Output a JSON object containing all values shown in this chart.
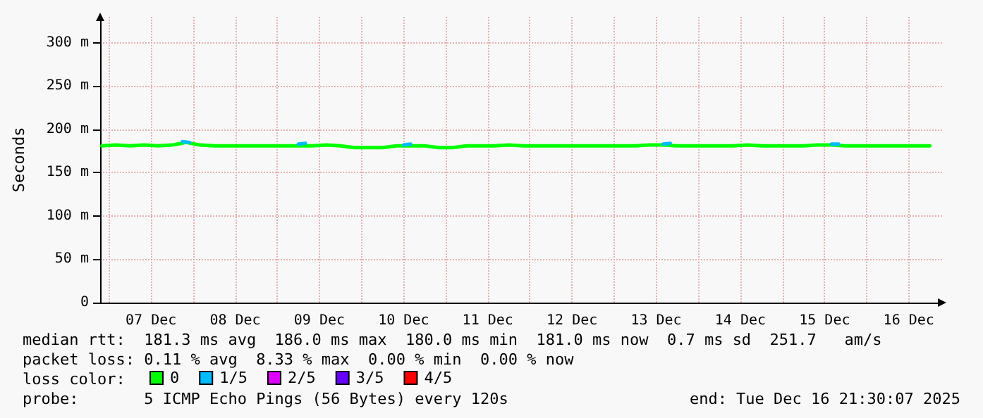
{
  "chart_data": {
    "type": "line",
    "ylabel": "Seconds",
    "legend_title": "loss color:",
    "legend": "bottom",
    "grid": true,
    "marker": "none",
    "line_style": "solid",
    "xlim": [
      "2025-12-06T21:30",
      "2025-12-16T21:30"
    ],
    "xticks": [
      {
        "value": "2025-12-07T00:00",
        "label": null
      },
      {
        "value": "2025-12-07T12:00",
        "label": "07 Dec"
      },
      {
        "value": "2025-12-08T00:00",
        "label": null
      },
      {
        "value": "2025-12-08T12:00",
        "label": "08 Dec"
      },
      {
        "value": "2025-12-09T00:00",
        "label": null
      },
      {
        "value": "2025-12-09T12:00",
        "label": "09 Dec"
      },
      {
        "value": "2025-12-10T00:00",
        "label": null
      },
      {
        "value": "2025-12-10T12:00",
        "label": "10 Dec"
      },
      {
        "value": "2025-12-11T00:00",
        "label": null
      },
      {
        "value": "2025-12-11T12:00",
        "label": "11 Dec"
      },
      {
        "value": "2025-12-12T00:00",
        "label": null
      },
      {
        "value": "2025-12-12T12:00",
        "label": "12 Dec"
      },
      {
        "value": "2025-12-13T00:00",
        "label": null
      },
      {
        "value": "2025-12-13T12:00",
        "label": "13 Dec"
      },
      {
        "value": "2025-12-14T00:00",
        "label": null
      },
      {
        "value": "2025-12-14T12:00",
        "label": "14 Dec"
      },
      {
        "value": "2025-12-15T00:00",
        "label": null
      },
      {
        "value": "2025-12-15T12:00",
        "label": "15 Dec"
      },
      {
        "value": "2025-12-16T00:00",
        "label": null
      },
      {
        "value": "2025-12-16T12:00",
        "label": "16 Dec"
      }
    ],
    "ylim": [
      0,
      330
    ],
    "yticks": [
      {
        "value": 0,
        "label": "0"
      },
      {
        "value": 50,
        "label": "50 m"
      },
      {
        "value": 100,
        "label": "100 m"
      },
      {
        "value": 150,
        "label": "150 m"
      },
      {
        "value": 200,
        "label": "200 m"
      },
      {
        "value": 250,
        "label": "250 m"
      },
      {
        "value": 300,
        "label": "300 m"
      }
    ],
    "x": [
      "2025-12-06T22:00",
      "2025-12-07T02:00",
      "2025-12-07T06:00",
      "2025-12-07T10:00",
      "2025-12-07T14:00",
      "2025-12-07T18:00",
      "2025-12-07T22:00",
      "2025-12-08T02:00",
      "2025-12-08T06:00",
      "2025-12-08T10:00",
      "2025-12-08T14:00",
      "2025-12-08T18:00",
      "2025-12-08T22:00",
      "2025-12-09T02:00",
      "2025-12-09T06:00",
      "2025-12-09T10:00",
      "2025-12-09T14:00",
      "2025-12-09T18:00",
      "2025-12-09T22:00",
      "2025-12-10T02:00",
      "2025-12-10T06:00",
      "2025-12-10T10:00",
      "2025-12-10T14:00",
      "2025-12-10T18:00",
      "2025-12-10T22:00",
      "2025-12-11T02:00",
      "2025-12-11T06:00",
      "2025-12-11T10:00",
      "2025-12-11T14:00",
      "2025-12-11T18:00",
      "2025-12-11T22:00",
      "2025-12-12T02:00",
      "2025-12-12T06:00",
      "2025-12-12T10:00",
      "2025-12-12T14:00",
      "2025-12-12T18:00",
      "2025-12-12T22:00",
      "2025-12-13T02:00",
      "2025-12-13T06:00",
      "2025-12-13T10:00",
      "2025-12-13T14:00",
      "2025-12-13T18:00",
      "2025-12-13T22:00",
      "2025-12-14T02:00",
      "2025-12-14T06:00",
      "2025-12-14T10:00",
      "2025-12-14T14:00",
      "2025-12-14T18:00",
      "2025-12-14T22:00",
      "2025-12-15T02:00",
      "2025-12-15T06:00",
      "2025-12-15T10:00",
      "2025-12-15T14:00",
      "2025-12-15T18:00",
      "2025-12-15T22:00",
      "2025-12-16T02:00",
      "2025-12-16T06:00",
      "2025-12-16T10:00",
      "2025-12-16T14:00",
      "2025-12-16T18:00"
    ],
    "series": [
      {
        "name": "0",
        "color": "#00ff00",
        "values": [
          181,
          182,
          181,
          182,
          181,
          182,
          185,
          182,
          181,
          181,
          181,
          181,
          181,
          181,
          181,
          181,
          182,
          181,
          179,
          179,
          179,
          181,
          181,
          181,
          179,
          179,
          181,
          181,
          181,
          182,
          181,
          181,
          181,
          181,
          181,
          181,
          181,
          181,
          181,
          182,
          182,
          181,
          181,
          181,
          181,
          181,
          182,
          181,
          181,
          181,
          181,
          182,
          182,
          181,
          181,
          181,
          181,
          181,
          181,
          181
        ]
      },
      {
        "name": "1/5",
        "color": "#00bbff",
        "x": [
          "2025-12-07T21:00",
          "2025-12-07T23:00",
          "2025-12-08T00:00",
          "2025-12-09T06:00",
          "2025-12-09T08:00",
          "2025-12-09T09:00",
          "2025-12-10T12:00",
          "2025-12-10T14:00",
          "2025-12-10T15:00",
          "2025-12-13T14:00",
          "2025-12-13T16:00",
          "2025-12-13T17:00",
          "2025-12-15T14:00",
          "2025-12-15T16:00"
        ],
        "values": [
          186,
          185,
          null,
          183,
          184,
          null,
          182,
          183,
          null,
          183,
          184,
          null,
          183,
          183
        ]
      },
      {
        "name": "2/5",
        "color": "#dd00ff",
        "values": [
          null,
          null,
          null,
          null,
          null,
          null,
          null,
          null,
          null,
          null,
          null,
          null,
          null,
          null,
          null,
          null,
          null,
          null,
          null,
          null,
          null,
          null,
          null,
          null,
          null,
          null,
          null,
          null,
          null,
          null,
          null,
          null,
          null,
          null,
          null,
          null,
          null,
          null,
          null,
          null,
          null,
          null,
          null,
          null,
          null,
          null,
          null,
          null,
          null,
          null,
          null,
          null,
          null,
          null,
          null,
          null,
          null,
          null,
          null,
          null
        ]
      },
      {
        "name": "3/5",
        "color": "#6600ff",
        "values": [
          null,
          null,
          null,
          null,
          null,
          null,
          null,
          null,
          null,
          null,
          null,
          null,
          null,
          null,
          null,
          null,
          null,
          null,
          null,
          null,
          null,
          null,
          null,
          null,
          null,
          null,
          null,
          null,
          null,
          null,
          null,
          null,
          null,
          null,
          null,
          null,
          null,
          null,
          null,
          null,
          null,
          null,
          null,
          null,
          null,
          null,
          null,
          null,
          null,
          null,
          null,
          null,
          null,
          null,
          null,
          null,
          null,
          null,
          null,
          null
        ]
      },
      {
        "name": "4/5",
        "color": "#ff0000",
        "values": [
          null,
          null,
          null,
          null,
          null,
          null,
          null,
          null,
          null,
          null,
          null,
          null,
          null,
          null,
          null,
          null,
          null,
          null,
          null,
          null,
          null,
          null,
          null,
          null,
          null,
          null,
          null,
          null,
          null,
          null,
          null,
          null,
          null,
          null,
          null,
          null,
          null,
          null,
          null,
          null,
          null,
          null,
          null,
          null,
          null,
          null,
          null,
          null,
          null,
          null,
          null,
          null,
          null,
          null,
          null,
          null,
          null,
          null,
          null,
          null
        ]
      }
    ],
    "annotations": [
      "median rtt:  181.3 ms avg  186.0 ms max  180.0 ms min  181.0 ms now  0.7 ms sd  251.7   am/s",
      "packet loss: 0.11 % avg  8.33 % max  0.00 % min  0.00 % now",
      "probe:       5 ICMP Echo Pings (56 Bytes) every 120s",
      "end: Tue Dec 16 21:30:07 2025"
    ]
  }
}
